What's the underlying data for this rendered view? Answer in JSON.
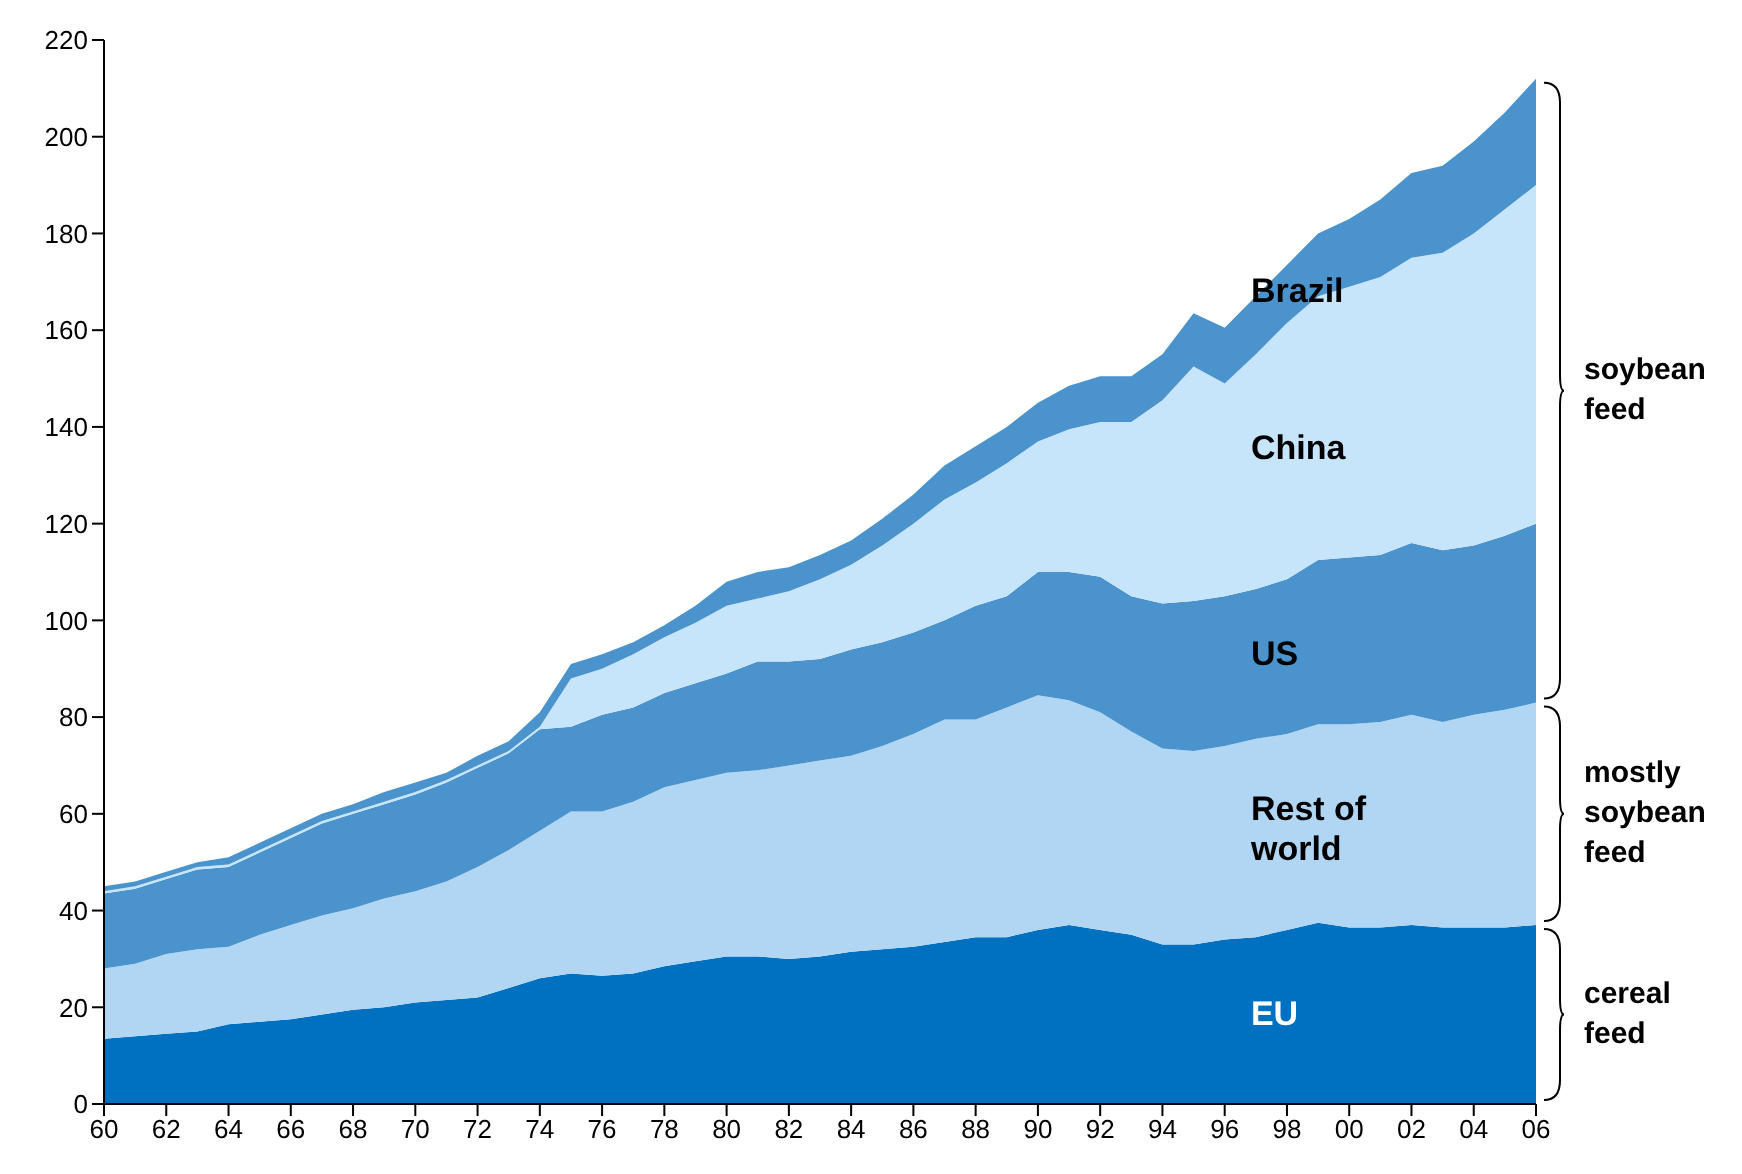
{
  "chart_data": {
    "type": "area",
    "stacked": true,
    "x": [
      1960,
      1961,
      1962,
      1963,
      1964,
      1965,
      1966,
      1967,
      1968,
      1969,
      1970,
      1971,
      1972,
      1973,
      1974,
      1975,
      1976,
      1977,
      1978,
      1979,
      1980,
      1981,
      1982,
      1983,
      1984,
      1985,
      1986,
      1987,
      1988,
      1989,
      1990,
      1991,
      1992,
      1993,
      1994,
      1995,
      1996,
      1997,
      1998,
      1999,
      2000,
      2001,
      2002,
      2003,
      2004,
      2005,
      2006
    ],
    "series": [
      {
        "name": "EU",
        "color": "#0070c0",
        "values": [
          13.5,
          14,
          14.5,
          15,
          16.5,
          17,
          17.5,
          18.5,
          19.5,
          20,
          21,
          21.5,
          22,
          24,
          26,
          27,
          26.5,
          27,
          28.5,
          29.5,
          30.5,
          30.5,
          30,
          30.5,
          31.5,
          32,
          32.5,
          33.5,
          34.5,
          34.5,
          36,
          37,
          36,
          35,
          33,
          33,
          34,
          34.5,
          36,
          37.5,
          36.5,
          36.5,
          37,
          36.5,
          36.5,
          36.5,
          37
        ]
      },
      {
        "name": "Rest of world",
        "color": "#b0d6f4",
        "values": [
          14.5,
          15,
          16.5,
          17,
          16,
          18,
          19.5,
          20.5,
          21,
          22.5,
          23,
          24.5,
          27,
          28.5,
          30.5,
          33.5,
          34,
          35.5,
          37,
          37.5,
          38,
          38.5,
          40,
          40.5,
          40.5,
          42,
          44,
          46,
          45,
          47.5,
          48.5,
          46.5,
          45,
          42,
          40.5,
          40,
          40,
          41,
          40.5,
          41,
          42,
          42.5,
          43.5,
          42.5,
          44,
          45,
          46
        ]
      },
      {
        "name": "US",
        "color": "#4a93cc",
        "values": [
          15.5,
          15.5,
          15.5,
          16.5,
          16.5,
          17,
          18,
          19,
          19.5,
          19.5,
          20,
          20.5,
          20.5,
          20,
          21,
          17.5,
          20,
          19.5,
          19.5,
          20,
          20.5,
          22.5,
          21.5,
          21,
          22,
          21.5,
          21,
          20.5,
          23.5,
          23,
          25.5,
          26.5,
          28,
          28,
          30,
          31,
          31,
          31,
          32,
          34,
          34.5,
          34.5,
          35.5,
          35.5,
          35,
          36,
          37
        ]
      },
      {
        "name": "China",
        "color": "#c6e4fa",
        "values": [
          0.5,
          0.5,
          0.5,
          0.5,
          0.5,
          0.5,
          0.5,
          0.5,
          0.5,
          0.5,
          0.5,
          0.5,
          0.5,
          0.5,
          0.5,
          10,
          9.5,
          11,
          11.5,
          12.5,
          14,
          13,
          14.5,
          16.5,
          17.5,
          20,
          22.5,
          25,
          25.5,
          27.5,
          27,
          29.5,
          32,
          36,
          42,
          48.5,
          44,
          48.5,
          53,
          54.5,
          56,
          57.5,
          59,
          61.5,
          64.5,
          67.5,
          70
        ]
      },
      {
        "name": "Brazil",
        "color": "#4a93cc",
        "values": [
          1,
          1,
          1,
          1,
          1.5,
          1.5,
          1.5,
          1.5,
          1.5,
          2,
          2,
          1.5,
          2,
          2,
          3,
          3,
          3,
          2.5,
          2.5,
          3.5,
          5,
          5.5,
          5,
          5,
          5,
          5.5,
          6,
          7,
          7.5,
          7.5,
          8,
          9,
          9.5,
          9.5,
          9.5,
          11,
          11.5,
          12,
          12,
          13,
          14,
          16,
          17.5,
          18,
          19,
          20,
          22
        ]
      }
    ],
    "xlim": [
      1960,
      2006
    ],
    "xticks": [
      {
        "value": 1960,
        "label": "60"
      },
      {
        "value": 1962,
        "label": "62"
      },
      {
        "value": 1964,
        "label": "64"
      },
      {
        "value": 1966,
        "label": "66"
      },
      {
        "value": 1968,
        "label": "68"
      },
      {
        "value": 1970,
        "label": "70"
      },
      {
        "value": 1972,
        "label": "72"
      },
      {
        "value": 1974,
        "label": "74"
      },
      {
        "value": 1976,
        "label": "76"
      },
      {
        "value": 1978,
        "label": "78"
      },
      {
        "value": 1980,
        "label": "80"
      },
      {
        "value": 1982,
        "label": "82"
      },
      {
        "value": 1984,
        "label": "84"
      },
      {
        "value": 1986,
        "label": "86"
      },
      {
        "value": 1988,
        "label": "88"
      },
      {
        "value": 1990,
        "label": "90"
      },
      {
        "value": 1992,
        "label": "92"
      },
      {
        "value": 1994,
        "label": "94"
      },
      {
        "value": 1996,
        "label": "96"
      },
      {
        "value": 1998,
        "label": "98"
      },
      {
        "value": 2000,
        "label": "00"
      },
      {
        "value": 2002,
        "label": "02"
      },
      {
        "value": 2004,
        "label": "04"
      },
      {
        "value": 2006,
        "label": "06"
      }
    ],
    "ylim": [
      0,
      220
    ],
    "yticks": [
      0,
      20,
      40,
      60,
      80,
      100,
      120,
      140,
      160,
      180,
      200,
      220
    ],
    "grid": false,
    "legend": false,
    "annotations": [
      "soybean feed",
      "mostly soybean feed",
      "cereal feed"
    ]
  }
}
